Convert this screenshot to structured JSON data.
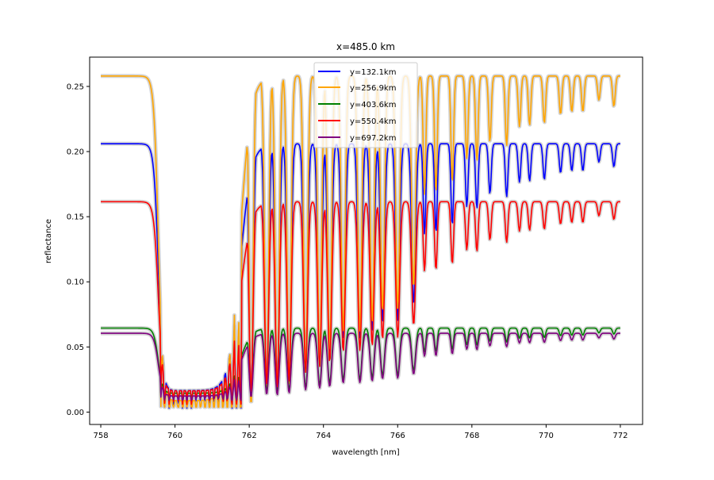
{
  "chart_data": {
    "type": "line",
    "title": "x=485.0 km",
    "xlabel": "wavelength [nm]",
    "ylabel": "reflectance",
    "xlim": [
      757.7,
      772.6
    ],
    "ylim": [
      -0.0095,
      0.2725
    ],
    "xticks": [
      758,
      760,
      762,
      764,
      766,
      768,
      770,
      772
    ],
    "yticks": [
      0.0,
      0.05,
      0.1,
      0.15,
      0.2,
      0.25
    ],
    "ytick_labels": [
      "0.00",
      "0.05",
      "0.10",
      "0.15",
      "0.20",
      "0.25"
    ],
    "grid": false,
    "legend_position": "upper center",
    "series": [
      {
        "name": "y=132.1km",
        "color": "#0000ff",
        "continuum": 0.206,
        "depth_shape": 1.0
      },
      {
        "name": "y=256.9km",
        "color": "#ffa500",
        "continuum": 0.258,
        "depth_shape": 1.25
      },
      {
        "name": "y=403.6km",
        "color": "#008000",
        "continuum": 0.0645,
        "depth_shape": 0.65
      },
      {
        "name": "y=550.4km",
        "color": "#ff0000",
        "continuum": 0.1615,
        "depth_shape": 0.95
      },
      {
        "name": "y=697.2km",
        "color": "#800080",
        "continuum": 0.0605,
        "depth_shape": 0.7
      }
    ],
    "band_color": "#cccccc",
    "absorption_lines_nm": [
      760.2,
      760.5,
      760.8,
      761.1,
      761.4,
      761.7,
      762.1,
      762.5,
      762.9,
      763.3,
      763.6,
      764.0,
      764.3,
      764.7,
      765.0,
      765.4,
      765.7,
      766.1,
      766.4,
      766.9,
      767.3,
      767.9,
      768.5,
      769.2,
      769.8,
      770.5,
      771.3
    ]
  }
}
